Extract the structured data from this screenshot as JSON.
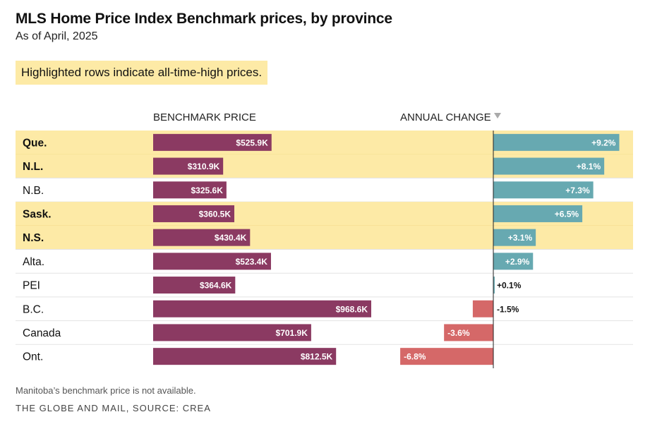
{
  "title": "MLS Home Price Index Benchmark prices, by province",
  "subtitle": "As of April, 2025",
  "note": "Highlighted rows indicate all-time-high prices.",
  "footnote": "Manitoba’s benchmark price is not available.",
  "credit": "THE GLOBE AND MAIL, SOURCE: CREA",
  "colors": {
    "highlight": "#fdeaa6",
    "price_bar": "#8b3a62",
    "positive_change": "#67a9b1",
    "negative_change": "#d56868"
  },
  "chart_data": {
    "type": "bar",
    "columns": [
      {
        "key": "price",
        "header": "BENCHMARK PRICE",
        "unit": "K"
      },
      {
        "key": "change",
        "header": "ANNUAL CHANGE",
        "sort_indicator": "descending",
        "unit": "%"
      }
    ],
    "rows": [
      {
        "region": "Que.",
        "price": 525.9,
        "price_label": "$525.9K",
        "change": 9.2,
        "change_label": "+9.2%",
        "highlight": true
      },
      {
        "region": "N.L.",
        "price": 310.9,
        "price_label": "$310.9K",
        "change": 8.1,
        "change_label": "+8.1%",
        "highlight": true
      },
      {
        "region": "N.B.",
        "price": 325.6,
        "price_label": "$325.6K",
        "change": 7.3,
        "change_label": "+7.3%",
        "highlight": false
      },
      {
        "region": "Sask.",
        "price": 360.5,
        "price_label": "$360.5K",
        "change": 6.5,
        "change_label": "+6.5%",
        "highlight": true
      },
      {
        "region": "N.S.",
        "price": 430.4,
        "price_label": "$430.4K",
        "change": 3.1,
        "change_label": "+3.1%",
        "highlight": true
      },
      {
        "region": "Alta.",
        "price": 523.4,
        "price_label": "$523.4K",
        "change": 2.9,
        "change_label": "+2.9%",
        "highlight": false
      },
      {
        "region": "PEI",
        "price": 364.6,
        "price_label": "$364.6K",
        "change": 0.1,
        "change_label": "+0.1%",
        "highlight": false
      },
      {
        "region": "B.C.",
        "price": 968.6,
        "price_label": "$968.6K",
        "change": -1.5,
        "change_label": "-1.5%",
        "highlight": false
      },
      {
        "region": "Canada",
        "price": 701.9,
        "price_label": "$701.9K",
        "change": -3.6,
        "change_label": "-3.6%",
        "highlight": false
      },
      {
        "region": "Ont.",
        "price": 812.5,
        "price_label": "$812.5K",
        "change": -6.8,
        "change_label": "-6.8%",
        "highlight": false
      }
    ]
  }
}
